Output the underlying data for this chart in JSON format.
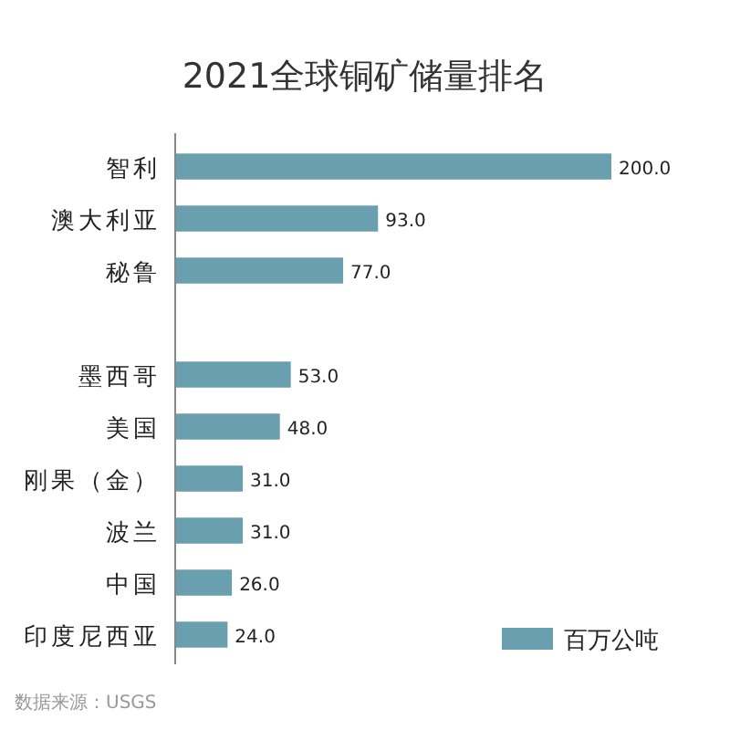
{
  "chart_data": {
    "type": "bar",
    "orientation": "horizontal",
    "title": "2021全球铜矿储量排名",
    "categories": [
      "智利",
      "澳大利亚",
      "秘鲁",
      null,
      "墨西哥",
      "美国",
      "刚果（金）",
      "波兰",
      "中国",
      "印度尼西亚"
    ],
    "series": [
      {
        "name": "百万公吨",
        "color": "#6a9fb0",
        "values": [
          200,
          93,
          77,
          null,
          53,
          48,
          31,
          31,
          26,
          24
        ],
        "value_labels": [
          "200.0",
          "93.0",
          "77.0",
          null,
          "53.0",
          "48.0",
          "31.0",
          "31.0",
          "26.0",
          "24.0"
        ]
      }
    ],
    "legend": "bottom right",
    "annotations": [
      "数据来源：USGS"
    ]
  }
}
